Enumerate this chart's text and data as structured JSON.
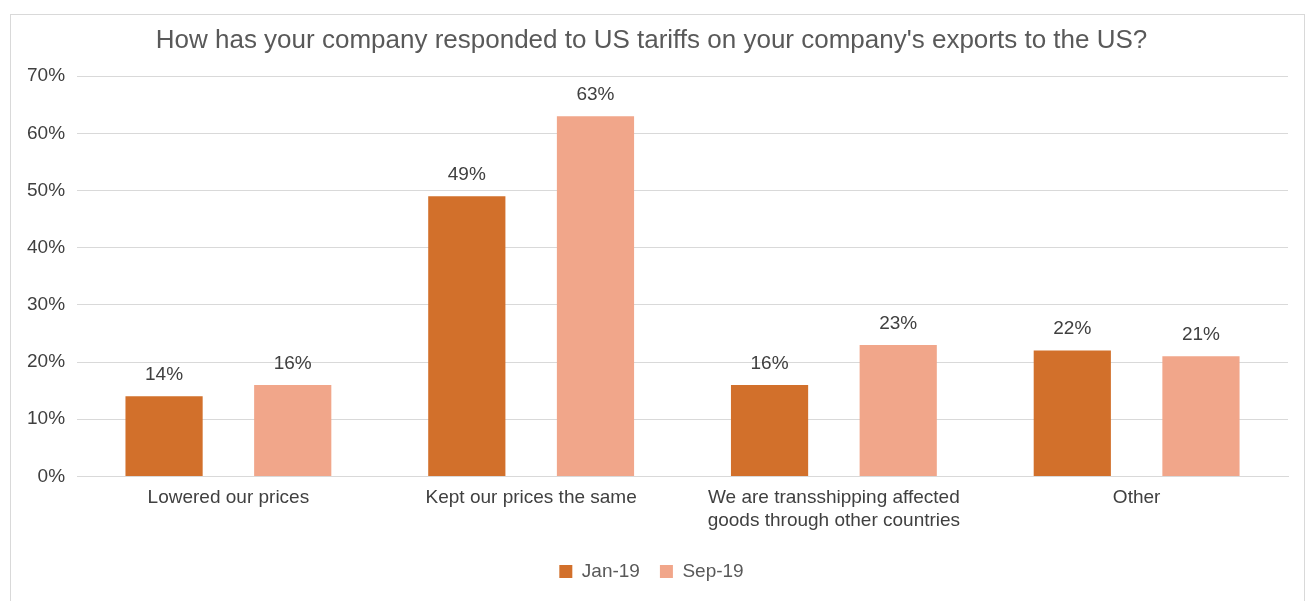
{
  "chart_data": {
    "type": "bar",
    "title": "How has your company responded to US tariffs on your company's exports to the US?",
    "categories": [
      "Lowered our prices",
      "Kept our prices the same",
      "We are transshipping affected goods through other countries",
      "Other"
    ],
    "series": [
      {
        "name": "Jan-19",
        "color": "#d2702b",
        "values": [
          14,
          49,
          16,
          22
        ],
        "value_labels": [
          "14%",
          "49%",
          "16%",
          "22%"
        ]
      },
      {
        "name": "Sep-19",
        "color": "#f1a68a",
        "values": [
          16,
          63,
          23,
          21
        ],
        "value_labels": [
          "16%",
          "63%",
          "23%",
          "21%"
        ]
      }
    ],
    "ylim": [
      0,
      70
    ],
    "yticks": [
      {
        "value": 0,
        "label": "0%"
      },
      {
        "value": 10,
        "label": "10%"
      },
      {
        "value": 20,
        "label": "20%"
      },
      {
        "value": 30,
        "label": "30%"
      },
      {
        "value": 40,
        "label": "40%"
      },
      {
        "value": 50,
        "label": "50%"
      },
      {
        "value": 60,
        "label": "60%"
      },
      {
        "value": 70,
        "label": "70%"
      }
    ],
    "grid": "y",
    "legend": "bottom"
  }
}
